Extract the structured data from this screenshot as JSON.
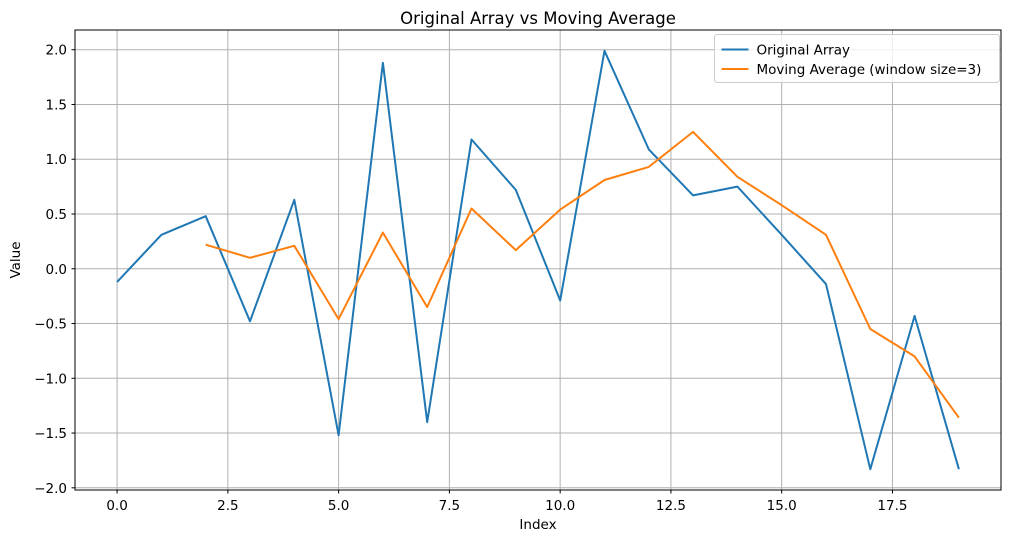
{
  "figure": {
    "background": "#ffffff"
  },
  "chart_data": {
    "type": "line",
    "title": "Original Array vs Moving Average",
    "xlabel": "Index",
    "ylabel": "Value",
    "xlim": [
      -0.95,
      19.95
    ],
    "ylim": [
      -2.02,
      2.18
    ],
    "grid": true,
    "grid_color": "#b0b0b0",
    "spine_color": "#000000",
    "legend_position": "upper right",
    "xticks": [
      0.0,
      2.5,
      5.0,
      7.5,
      10.0,
      12.5,
      15.0,
      17.5
    ],
    "xtick_labels": [
      "0.0",
      "2.5",
      "5.0",
      "7.5",
      "10.0",
      "12.5",
      "15.0",
      "17.5"
    ],
    "yticks": [
      -2.0,
      -1.5,
      -1.0,
      -0.5,
      0.0,
      0.5,
      1.0,
      1.5,
      2.0
    ],
    "ytick_labels": [
      "−2.0",
      "−1.5",
      "−1.0",
      "−0.5",
      "0.0",
      "0.5",
      "1.0",
      "1.5",
      "2.0"
    ],
    "series": [
      {
        "name": "Original Array",
        "color": "#1f77b4",
        "x": [
          0,
          1,
          2,
          3,
          4,
          5,
          6,
          7,
          8,
          9,
          10,
          11,
          12,
          13,
          14,
          15,
          16,
          17,
          18,
          19
        ],
        "values": [
          -0.12,
          0.31,
          0.48,
          -0.48,
          0.63,
          -1.52,
          1.88,
          -1.4,
          1.18,
          0.72,
          -0.29,
          1.99,
          1.09,
          0.67,
          0.75,
          0.31,
          -0.14,
          -1.83,
          -0.43,
          -1.83
        ]
      },
      {
        "name": "Moving Average (window size=3)",
        "color": "#ff7f0e",
        "x": [
          2,
          3,
          4,
          5,
          6,
          7,
          8,
          9,
          10,
          11,
          12,
          13,
          14,
          15,
          16,
          17,
          18,
          19
        ],
        "values": [
          0.22,
          0.1,
          0.21,
          -0.46,
          0.33,
          -0.35,
          0.55,
          0.17,
          0.54,
          0.81,
          0.93,
          1.25,
          0.84,
          0.58,
          0.31,
          -0.55,
          -0.8,
          -1.36
        ]
      }
    ]
  }
}
